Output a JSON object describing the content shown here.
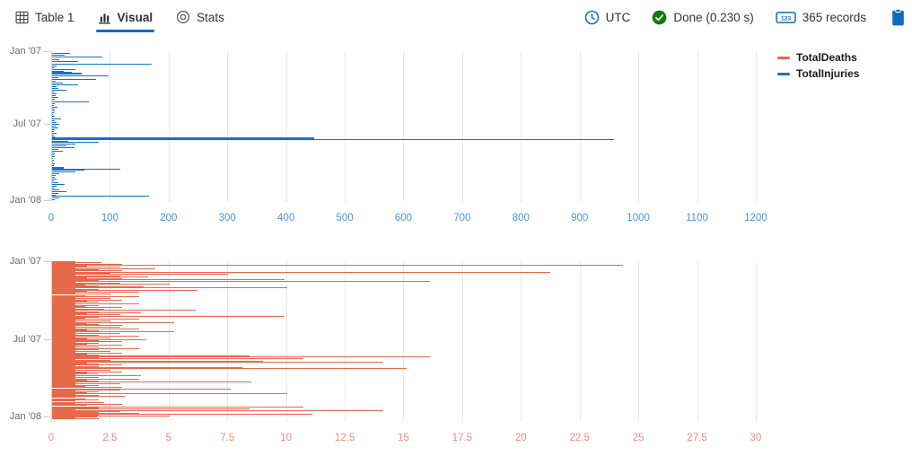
{
  "toolbar": {
    "tabs": [
      {
        "label": "Table 1",
        "icon": "table-icon",
        "active": false
      },
      {
        "label": "Visual",
        "icon": "bar-chart-icon",
        "active": true
      },
      {
        "label": "Stats",
        "icon": "stats-donut-icon",
        "active": false
      }
    ],
    "active_underline_color": "#0f6cbd",
    "timezone": {
      "label": "UTC",
      "icon": "clock-icon"
    },
    "status": {
      "label": "Done (0.230 s)",
      "icon": "check-circle-icon",
      "icon_color": "#107c10"
    },
    "records": {
      "label": "365 records",
      "icon": "number-badge-icon"
    },
    "copy_icon": "clipboard-icon",
    "accent_color": "#0f6cbd"
  },
  "legend": {
    "items": [
      {
        "label": "TotalDeaths",
        "color": "#e8684a"
      },
      {
        "label": "TotalInjuries",
        "color": "#1272c8"
      }
    ]
  },
  "chart_data": [
    {
      "type": "bar",
      "orientation": "horizontal",
      "series_name": "TotalInjuries",
      "color": "#1272c8",
      "tick_label_color": "#4a94da",
      "xlim": [
        0,
        1220
      ],
      "x_ticks": [
        0,
        100,
        200,
        300,
        400,
        500,
        600,
        700,
        800,
        900,
        1000,
        1100,
        1200
      ],
      "y_ticks": [
        {
          "label": "Jan '07",
          "row": 0
        },
        {
          "label": "Jul '07",
          "row": 81
        },
        {
          "label": "Jan '08",
          "row": 166
        }
      ],
      "grid": true,
      "legend_position": "top-right",
      "bars": [
        [
          2,
          30
        ],
        [
          4,
          22
        ],
        [
          6,
          86
        ],
        [
          9,
          12
        ],
        [
          11,
          45
        ],
        [
          14,
          169
        ],
        [
          16,
          8
        ],
        [
          18,
          4
        ],
        [
          20,
          39
        ],
        [
          22,
          20
        ],
        [
          23,
          34
        ],
        [
          24,
          50,
          2
        ],
        [
          27,
          96
        ],
        [
          29,
          10
        ],
        [
          31,
          75
        ],
        [
          33,
          6
        ],
        [
          35,
          19
        ],
        [
          37,
          45
        ],
        [
          39,
          8
        ],
        [
          41,
          11
        ],
        [
          43,
          25
        ],
        [
          45,
          5
        ],
        [
          47,
          8
        ],
        [
          49,
          6
        ],
        [
          51,
          10
        ],
        [
          53,
          4
        ],
        [
          56,
          63
        ],
        [
          58,
          4
        ],
        [
          60,
          3
        ],
        [
          62,
          9
        ],
        [
          64,
          4
        ],
        [
          66,
          5
        ],
        [
          68,
          3
        ],
        [
          70,
          2
        ],
        [
          72,
          4
        ],
        [
          75,
          15
        ],
        [
          77,
          5
        ],
        [
          79,
          8
        ],
        [
          81,
          12
        ],
        [
          83,
          6
        ],
        [
          85,
          10
        ],
        [
          87,
          4
        ],
        [
          89,
          3
        ],
        [
          91,
          8
        ],
        [
          93,
          3
        ],
        [
          95,
          5
        ],
        [
          96,
          446,
          2
        ],
        [
          98,
          957
        ],
        [
          100,
          28
        ],
        [
          101,
          80
        ],
        [
          103,
          40
        ],
        [
          105,
          25
        ],
        [
          107,
          38
        ],
        [
          109,
          10
        ],
        [
          111,
          18
        ],
        [
          113,
          5
        ],
        [
          115,
          3
        ],
        [
          117,
          4
        ],
        [
          119,
          2
        ],
        [
          121,
          3
        ],
        [
          123,
          2
        ],
        [
          125,
          4
        ],
        [
          127,
          3
        ],
        [
          129,
          20,
          2
        ],
        [
          131,
          116
        ],
        [
          132,
          55
        ],
        [
          134,
          40
        ],
        [
          136,
          12
        ],
        [
          138,
          6
        ],
        [
          140,
          4
        ],
        [
          142,
          8
        ],
        [
          144,
          3
        ],
        [
          146,
          10
        ],
        [
          148,
          22
        ],
        [
          150,
          8
        ],
        [
          152,
          5
        ],
        [
          154,
          12
        ],
        [
          156,
          25
        ],
        [
          158,
          10
        ],
        [
          160,
          6
        ],
        [
          161,
          165
        ],
        [
          163,
          12
        ],
        [
          165,
          5
        ]
      ]
    },
    {
      "type": "bar",
      "orientation": "horizontal",
      "series_name": "TotalDeaths",
      "color": "#e8684a",
      "tick_label_color": "#f08d7a",
      "xlim": [
        0,
        30.5
      ],
      "x_ticks": [
        0,
        2.5,
        5,
        7.5,
        10,
        12.5,
        15,
        17.5,
        20,
        22.5,
        25,
        27.5,
        30
      ],
      "y_ticks": [
        {
          "label": "Jan '07",
          "row": 0
        },
        {
          "label": "Jul '07",
          "row": 87
        },
        {
          "label": "Jan '08",
          "row": 173
        }
      ],
      "grid": true,
      "bars": [
        [
          0,
          1
        ],
        [
          1,
          2.1
        ],
        [
          2,
          1
        ],
        [
          3,
          3
        ],
        [
          4,
          24.3
        ],
        [
          5,
          1.5
        ],
        [
          6,
          2.9
        ],
        [
          7,
          1
        ],
        [
          8,
          4.4
        ],
        [
          9,
          2
        ],
        [
          10,
          3
        ],
        [
          11,
          1
        ],
        [
          12,
          21.2
        ],
        [
          13,
          2.5
        ],
        [
          14,
          7.5
        ],
        [
          15,
          1
        ],
        [
          16,
          2.9
        ],
        [
          17,
          4.1
        ],
        [
          18,
          1.5
        ],
        [
          19,
          3
        ],
        [
          20,
          9.9
        ],
        [
          21,
          2
        ],
        [
          22,
          16.1
        ],
        [
          23,
          1
        ],
        [
          24,
          2.9
        ],
        [
          25,
          5
        ],
        [
          26,
          1.4
        ],
        [
          27,
          2
        ],
        [
          28,
          3.9
        ],
        [
          29,
          10
        ],
        [
          30,
          1
        ],
        [
          31,
          2
        ],
        [
          32,
          6.2
        ],
        [
          33,
          1.5
        ],
        [
          34,
          3.7
        ],
        [
          35,
          1
        ],
        [
          36,
          2.5
        ],
        [
          38,
          1.4
        ],
        [
          39,
          3.7
        ],
        [
          40,
          1
        ],
        [
          41,
          2.5
        ],
        [
          42,
          1
        ],
        [
          43,
          3
        ],
        [
          44,
          1.5
        ],
        [
          45,
          2
        ],
        [
          46,
          1
        ],
        [
          47,
          3.7
        ],
        [
          48,
          1
        ],
        [
          49,
          2
        ],
        [
          50,
          1.4
        ],
        [
          51,
          3
        ],
        [
          52,
          1
        ],
        [
          53,
          2.2
        ],
        [
          54,
          6.1
        ],
        [
          55,
          1
        ],
        [
          56,
          2
        ],
        [
          57,
          3.8
        ],
        [
          58,
          1.5
        ],
        [
          59,
          2.9
        ],
        [
          60,
          1
        ],
        [
          61,
          9.9
        ],
        [
          62,
          2
        ],
        [
          63,
          1.4
        ],
        [
          64,
          3.7
        ],
        [
          65,
          1
        ],
        [
          66,
          2.5
        ],
        [
          67,
          1
        ],
        [
          68,
          5.2
        ],
        [
          69,
          1.5
        ],
        [
          70,
          2
        ],
        [
          71,
          3
        ],
        [
          72,
          1
        ],
        [
          73,
          2.9
        ],
        [
          74,
          1
        ],
        [
          75,
          3.7
        ],
        [
          76,
          1.5
        ],
        [
          77,
          2
        ],
        [
          78,
          5.2
        ],
        [
          79,
          1
        ],
        [
          80,
          2.9
        ],
        [
          81,
          1
        ],
        [
          82,
          2
        ],
        [
          83,
          3.7
        ],
        [
          84,
          1
        ],
        [
          85,
          2.5
        ],
        [
          86,
          1.5
        ],
        [
          87,
          4
        ],
        [
          88,
          2
        ],
        [
          89,
          3
        ],
        [
          90,
          1
        ],
        [
          91,
          2
        ],
        [
          92,
          1.5
        ],
        [
          93,
          3
        ],
        [
          94,
          1
        ],
        [
          95,
          2
        ],
        [
          96,
          1
        ],
        [
          97,
          3.7
        ],
        [
          98,
          2
        ],
        [
          99,
          1
        ],
        [
          100,
          2.5
        ],
        [
          101,
          1
        ],
        [
          102,
          3
        ],
        [
          103,
          1.5
        ],
        [
          104,
          2
        ],
        [
          105,
          8.4
        ],
        [
          106,
          16.1
        ],
        [
          107,
          2
        ],
        [
          108,
          10.7
        ],
        [
          109,
          1
        ],
        [
          110,
          2.5
        ],
        [
          111,
          9
        ],
        [
          112,
          14.1
        ],
        [
          113,
          1.5
        ],
        [
          114,
          2
        ],
        [
          115,
          3
        ],
        [
          116,
          1
        ],
        [
          117,
          2
        ],
        [
          118,
          8.1
        ],
        [
          119,
          15.1
        ],
        [
          120,
          1
        ],
        [
          121,
          2.5
        ],
        [
          122,
          1
        ],
        [
          123,
          3
        ],
        [
          124,
          1.5
        ],
        [
          125,
          2
        ],
        [
          126,
          1
        ],
        [
          127,
          3.8
        ],
        [
          128,
          1
        ],
        [
          129,
          2
        ],
        [
          130,
          1
        ],
        [
          131,
          3.7
        ],
        [
          132,
          1.5
        ],
        [
          133,
          2
        ],
        [
          134,
          8.5
        ],
        [
          135,
          1
        ],
        [
          136,
          2.9
        ],
        [
          137,
          1
        ],
        [
          138,
          2
        ],
        [
          139,
          1.4
        ],
        [
          140,
          3
        ],
        [
          142,
          7.6
        ],
        [
          143,
          2.9
        ],
        [
          144,
          1
        ],
        [
          145,
          2
        ],
        [
          146,
          1.5
        ],
        [
          147,
          10
        ],
        [
          148,
          1
        ],
        [
          149,
          2
        ],
        [
          150,
          3.1
        ],
        [
          151,
          1
        ],
        [
          153,
          1.4
        ],
        [
          154,
          2
        ],
        [
          155,
          1
        ],
        [
          157,
          2.2
        ],
        [
          158,
          1
        ],
        [
          159,
          3
        ],
        [
          160,
          1.5
        ],
        [
          162,
          10.7
        ],
        [
          163,
          2
        ],
        [
          164,
          8.4
        ],
        [
          165,
          1
        ],
        [
          166,
          14.1
        ],
        [
          167,
          2.9
        ],
        [
          168,
          2
        ],
        [
          169,
          3.7
        ],
        [
          170,
          11.1
        ],
        [
          171,
          2
        ],
        [
          172,
          5
        ],
        [
          173,
          1.9
        ],
        [
          174,
          1
        ],
        [
          175,
          2
        ]
      ]
    }
  ]
}
